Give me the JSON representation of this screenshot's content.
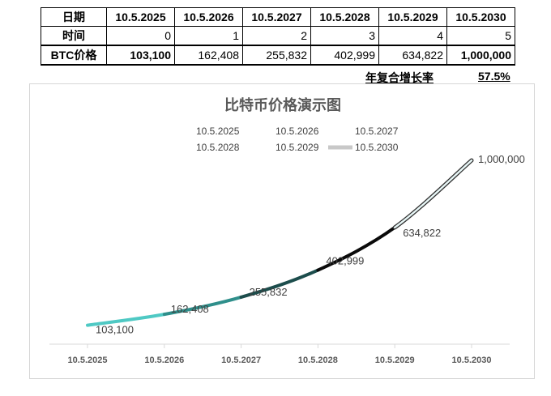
{
  "table": {
    "row_headers": [
      "日期",
      "时间",
      "BTC价格"
    ],
    "dates": [
      "10.5.2025",
      "10.5.2026",
      "10.5.2027",
      "10.5.2028",
      "10.5.2029",
      "10.5.2030"
    ],
    "times": [
      "0",
      "1",
      "2",
      "3",
      "4",
      "5"
    ],
    "prices": [
      "103,100",
      "162,408",
      "255,832",
      "402,999",
      "634,822",
      "1,000,000"
    ],
    "cagr_label": "年复合增长率",
    "cagr_value": "57.5%"
  },
  "chart_data": {
    "type": "line",
    "title": "比特币价格演示图",
    "categories": [
      "10.5.2025",
      "10.5.2026",
      "10.5.2027",
      "10.5.2028",
      "10.5.2029",
      "10.5.2030"
    ],
    "values": [
      103100,
      162408,
      255832,
      402999,
      634822,
      1000000
    ],
    "data_labels": [
      "103,100",
      "162,408",
      "255,832",
      "402,999",
      "634,822",
      "1,000,000"
    ],
    "legend": [
      "10.5.2025",
      "10.5.2026",
      "10.5.2027",
      "10.5.2028",
      "10.5.2029",
      "10.5.2030"
    ],
    "legend_position": "top",
    "segment_colors": [
      "#4fc9c4",
      "#2f9e9a",
      "#111111",
      "#1a3f40",
      "#7fd8d4",
      "#ffffff"
    ],
    "ylim": [
      0,
      1150000
    ],
    "grid": false,
    "xlabel": "",
    "ylabel": ""
  }
}
